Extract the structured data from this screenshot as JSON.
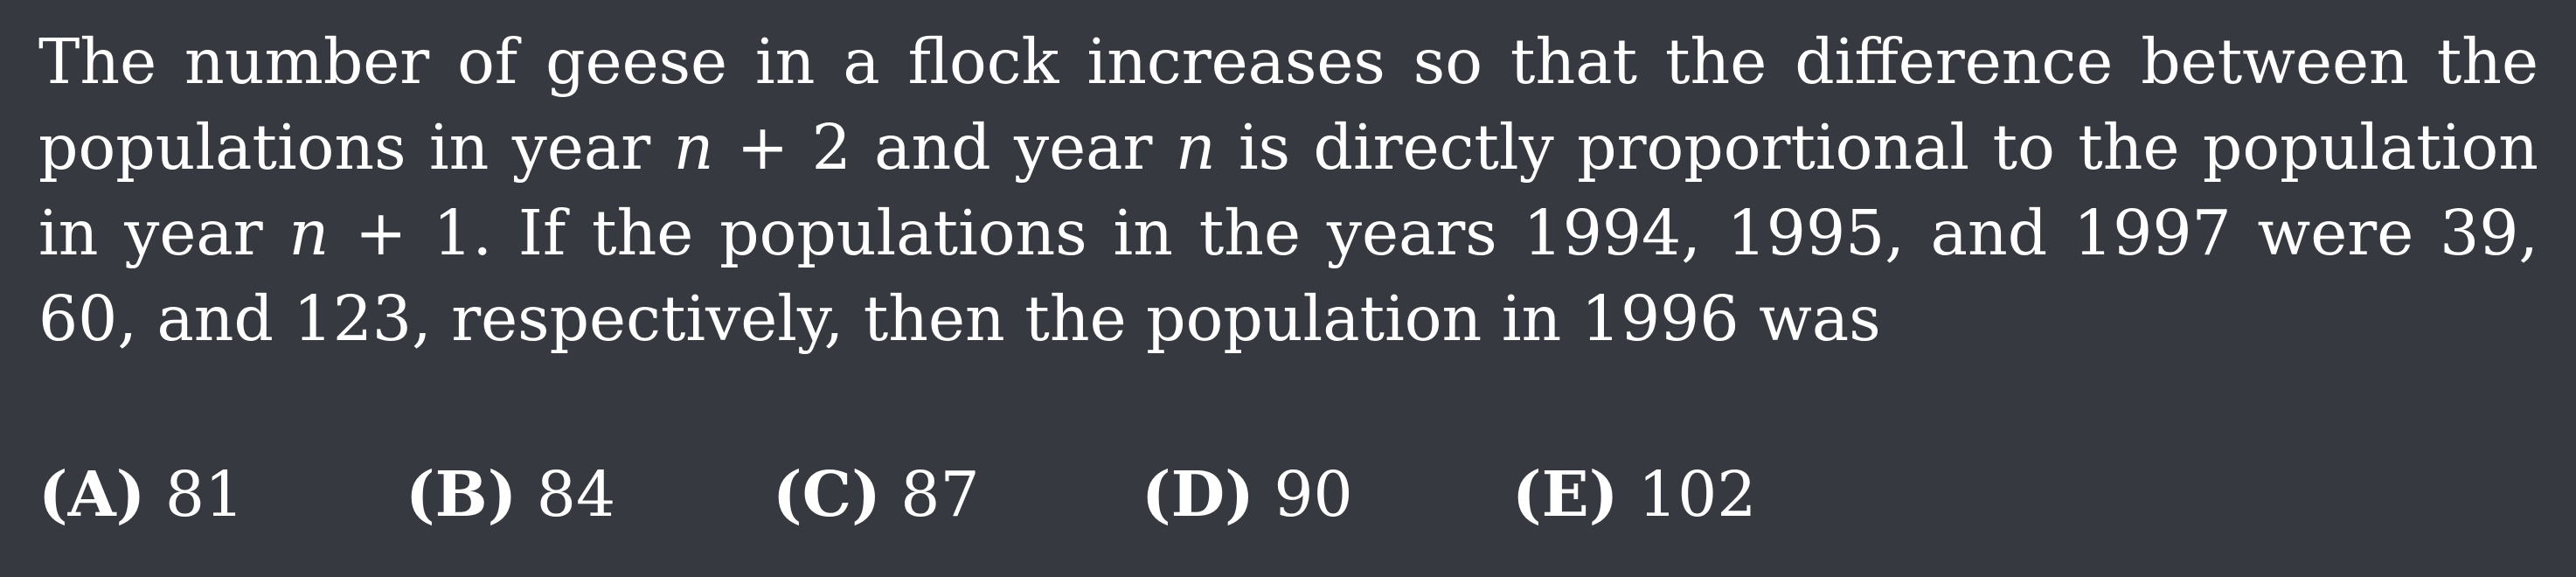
{
  "problem": {
    "segments": [
      "The number of geese in a flock increases so that the difference between the populations in year ",
      "n",
      " + 2 and year ",
      "n",
      " is directly proportional to the population in year ",
      "n",
      " + 1. If the populations in the years 1994, 1995, and 1997 were 39, 60, and 123, respectively, then the population in 1996 was"
    ]
  },
  "choices": [
    {
      "letter": "(A)",
      "value": "81"
    },
    {
      "letter": "(B)",
      "value": "84"
    },
    {
      "letter": "(C)",
      "value": "87"
    },
    {
      "letter": "(D)",
      "value": "90"
    },
    {
      "letter": "(E)",
      "value": "102"
    }
  ]
}
